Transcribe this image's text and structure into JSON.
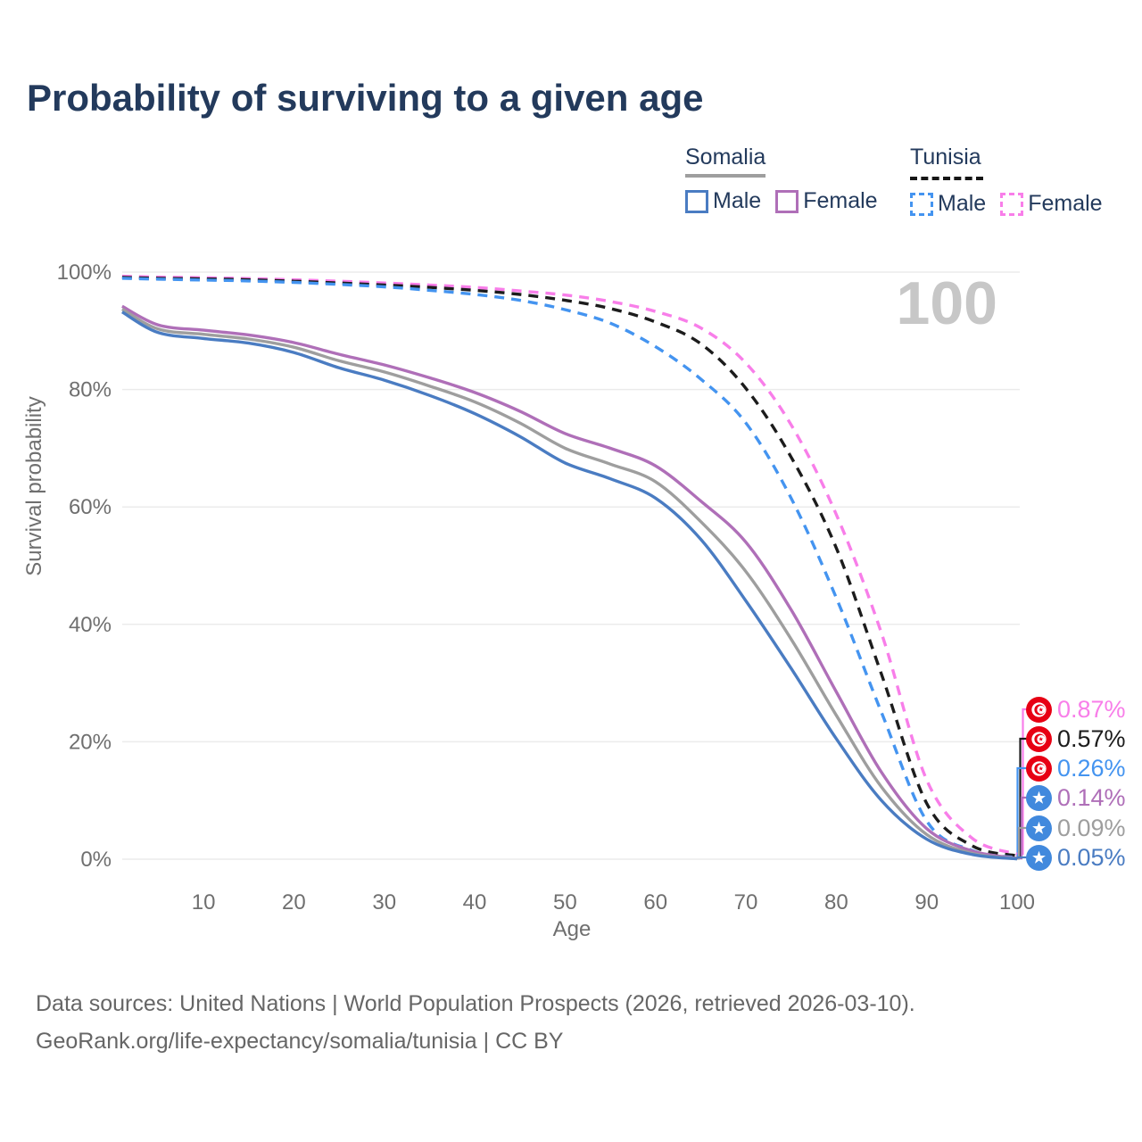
{
  "title": "Probability of surviving to a given age",
  "watermark": "100",
  "legend": {
    "groups": [
      {
        "label": "Somalia",
        "line_style": "solid",
        "entries": [
          {
            "label": "Male",
            "color": "#4A7CC2"
          },
          {
            "label": "Female",
            "color": "#AF6FB8"
          }
        ]
      },
      {
        "label": "Tunisia",
        "line_style": "dashed",
        "entries": [
          {
            "label": "Male",
            "color": "#4494F0"
          },
          {
            "label": "Female",
            "color": "#F87EE9"
          }
        ]
      }
    ]
  },
  "footer": {
    "line1": "Data sources: United Nations | World Population Prospects (2026, retrieved 2026-03-10).",
    "line2": "GeoRank.org/life-expectancy/somalia/tunisia | CC BY"
  },
  "chart_data": {
    "type": "line",
    "xlabel": "Age",
    "ylabel": "Survival probability",
    "xlim": [
      0,
      100
    ],
    "ylim": [
      0,
      100
    ],
    "x_ticks": [
      10,
      20,
      30,
      40,
      50,
      60,
      70,
      80,
      90,
      100
    ],
    "y_tick_labels": [
      "0%",
      "20%",
      "40%",
      "60%",
      "80%",
      "100%"
    ],
    "grid": "horizontal",
    "legend_position": "top-right",
    "ages": [
      1,
      5,
      10,
      15,
      20,
      25,
      30,
      35,
      40,
      45,
      50,
      55,
      60,
      65,
      70,
      75,
      80,
      85,
      90,
      95,
      100
    ],
    "series": [
      {
        "id": "tunisia-female",
        "country": "Tunisia",
        "sex": "female",
        "line": "dashed",
        "color": "#F87EE9",
        "flag": "tunisia",
        "end_label": "0.87%",
        "values": [
          99.3,
          99.15,
          99.05,
          98.9,
          98.7,
          98.45,
          98.15,
          97.8,
          97.4,
          96.8,
          96.1,
          95.0,
          93.3,
          90.5,
          84.5,
          74.0,
          58.7,
          38.5,
          13.5,
          3.6,
          0.87
        ]
      },
      {
        "id": "tunisia-both",
        "country": "Tunisia",
        "sex": "both",
        "line": "dashed",
        "color": "#1C1C1C",
        "flag": "tunisia",
        "end_label": "0.57%",
        "values": [
          99.1,
          98.95,
          98.85,
          98.7,
          98.45,
          98.15,
          97.8,
          97.4,
          96.9,
          96.2,
          95.2,
          93.8,
          91.5,
          87.8,
          80.2,
          68.5,
          53.0,
          31.5,
          9.5,
          2.3,
          0.57
        ]
      },
      {
        "id": "tunisia-male",
        "country": "Tunisia",
        "sex": "male",
        "line": "dashed",
        "color": "#4494F0",
        "flag": "tunisia",
        "end_label": "0.26%",
        "values": [
          98.95,
          98.8,
          98.65,
          98.5,
          98.25,
          97.9,
          97.5,
          96.9,
          96.2,
          95.2,
          93.6,
          91.3,
          87.3,
          81.8,
          74.3,
          61.5,
          44.5,
          25.0,
          6.5,
          1.5,
          0.26
        ]
      },
      {
        "id": "somalia-female",
        "country": "Somalia",
        "sex": "female",
        "line": "solid",
        "color": "#AF6FB8",
        "flag": "somalia",
        "end_label": "0.14%",
        "values": [
          94.2,
          91.0,
          90.1,
          89.3,
          88.0,
          86.0,
          84.2,
          82.0,
          79.5,
          76.3,
          72.5,
          70.0,
          67.0,
          61.0,
          54.0,
          42.5,
          28.5,
          14.8,
          5.2,
          1.4,
          0.14
        ]
      },
      {
        "id": "somalia-both",
        "country": "Somalia",
        "sex": "both",
        "line": "solid",
        "color": "#9E9E9E",
        "flag": "somalia",
        "end_label": "0.09%",
        "values": [
          93.7,
          90.3,
          89.4,
          88.6,
          87.2,
          84.9,
          83.0,
          80.6,
          77.9,
          74.3,
          70.0,
          67.3,
          64.3,
          57.5,
          49.0,
          37.5,
          24.5,
          12.3,
          4.2,
          1.0,
          0.09
        ]
      },
      {
        "id": "somalia-male",
        "country": "Somalia",
        "sex": "male",
        "line": "solid",
        "color": "#4A7CC2",
        "flag": "somalia",
        "end_label": "0.05%",
        "values": [
          93.2,
          89.7,
          88.7,
          87.9,
          86.3,
          83.7,
          81.6,
          79.0,
          75.9,
          72.0,
          67.5,
          64.8,
          61.5,
          54.5,
          44.0,
          32.5,
          20.5,
          10.0,
          3.4,
          0.8,
          0.05
        ]
      }
    ],
    "flag_colors": {
      "tunisia_red": "#E70013",
      "somalia_blue": "#4189DD"
    }
  }
}
